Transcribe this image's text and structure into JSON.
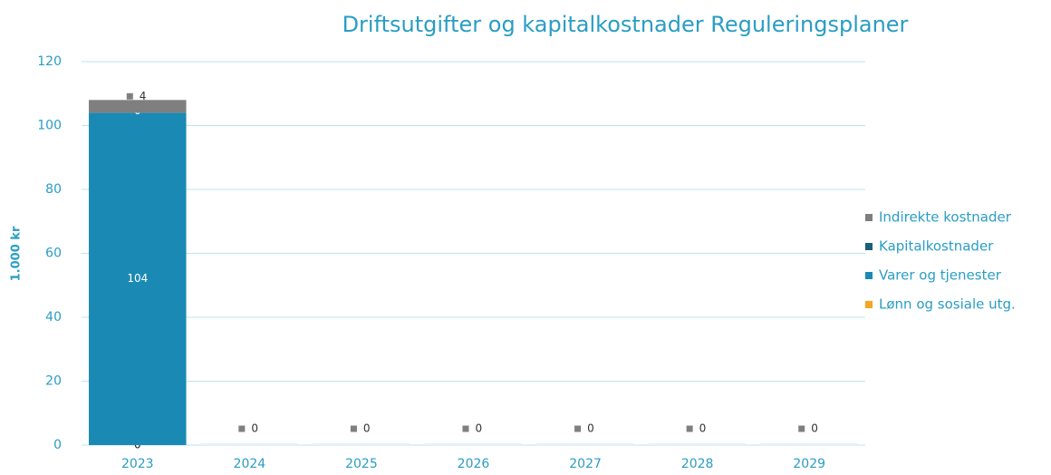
{
  "chart_data": {
    "type": "stacked_bar",
    "title": "Driftsutgifter og kapitalkostnader Reguleringsplaner",
    "y_label": "1.000 kr",
    "categories": [
      "2023",
      "2024",
      "2025",
      "2026",
      "2027",
      "2028",
      "2029"
    ],
    "series": [
      {
        "name": "Lønn og sosiale utg.",
        "color": "#f5a623",
        "values": [
          0,
          0,
          0,
          0,
          0,
          0,
          0
        ]
      },
      {
        "name": "Varer og tjenester",
        "color": "#1a8ab4",
        "values": [
          104,
          0,
          0,
          0,
          0,
          0,
          0
        ]
      },
      {
        "name": "Kapitalkostnader",
        "color": "#1c5f78",
        "values": [
          0,
          0,
          0,
          0,
          0,
          0,
          0
        ]
      },
      {
        "name": "Indirekte kostnader",
        "color": "#7f7f7f",
        "values": [
          4,
          0,
          0,
          0,
          0,
          0,
          0
        ]
      }
    ],
    "ylim": [
      0,
      120
    ],
    "yticks": [
      0,
      20,
      40,
      60,
      80,
      100,
      120
    ],
    "grid": true,
    "legend": "right"
  }
}
